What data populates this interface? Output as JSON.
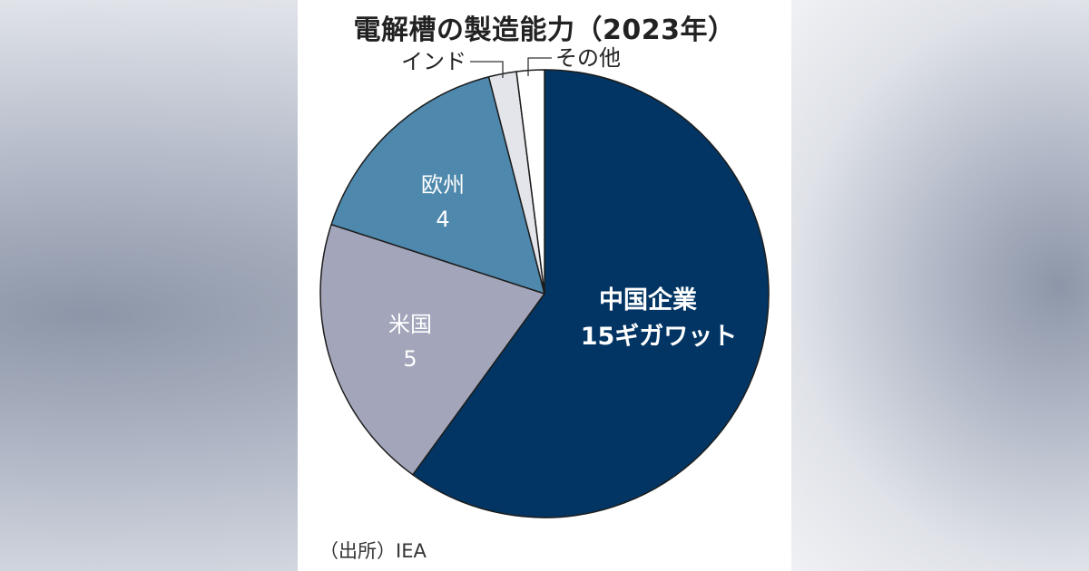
{
  "chart_data": {
    "type": "pie",
    "title": "電解槽の製造能力（2023年）",
    "source": "（出所）IEA",
    "slices": [
      {
        "name": "中国企業",
        "value": 15,
        "value_label": "15ギガワット",
        "color": "#023563"
      },
      {
        "name": "米国",
        "value": 5,
        "value_label": "5",
        "color": "#a3a6bb"
      },
      {
        "name": "欧州",
        "value": 4,
        "value_label": "4",
        "color": "#4e88ad"
      },
      {
        "name": "インド",
        "value": 0.5,
        "value_label": "",
        "color": "#e3e5eb"
      },
      {
        "name": "その他",
        "value": 0.5,
        "value_label": "",
        "color": "#ffffff"
      }
    ]
  }
}
